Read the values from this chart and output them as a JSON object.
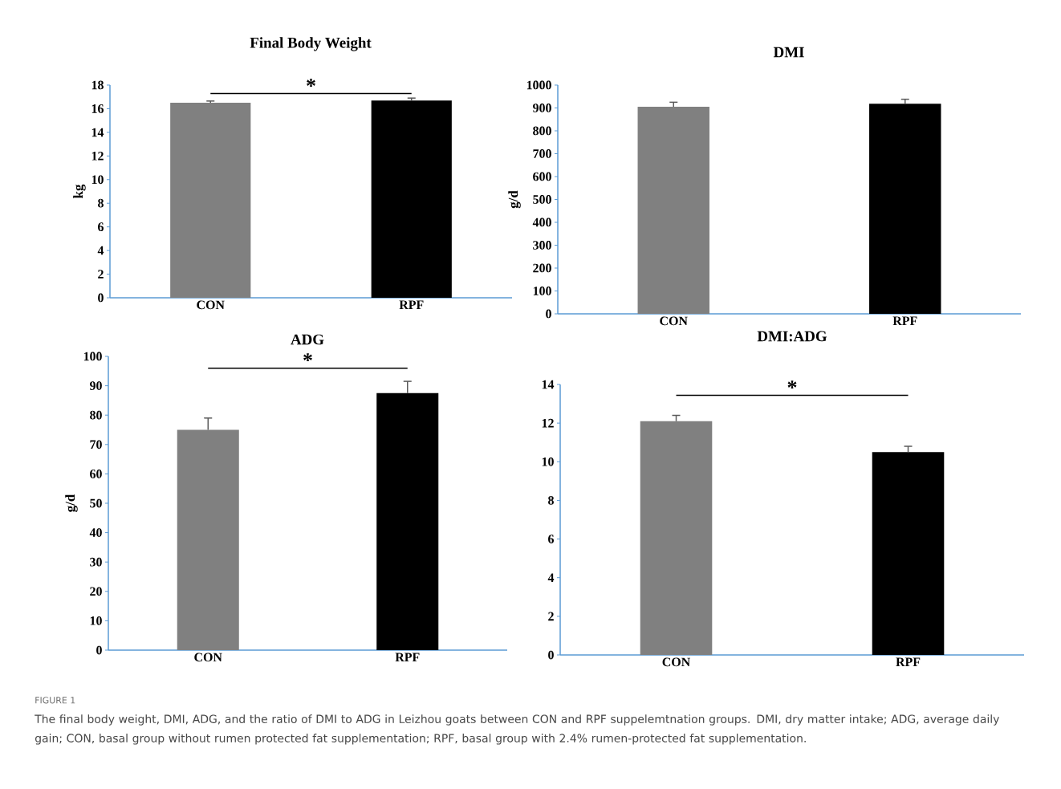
{
  "chart_data": [
    {
      "type": "bar",
      "title": "Final Body Weight",
      "ylabel": "kg",
      "categories": [
        "CON",
        "RPF"
      ],
      "values": [
        16.5,
        16.7
      ],
      "errors": [
        0.15,
        0.2
      ],
      "colors": [
        "#808080",
        "#000000"
      ],
      "ylim": [
        0,
        18
      ],
      "yticks": [
        0,
        2,
        4,
        6,
        8,
        10,
        12,
        14,
        16,
        18
      ],
      "annotations": [
        "*"
      ]
    },
    {
      "type": "bar",
      "title": "DMI",
      "ylabel": "g/d",
      "categories": [
        "CON",
        "RPF"
      ],
      "values": [
        905,
        918
      ],
      "errors": [
        20,
        20
      ],
      "colors": [
        "#808080",
        "#000000"
      ],
      "ylim": [
        0,
        1000
      ],
      "yticks": [
        0,
        100,
        200,
        300,
        400,
        500,
        600,
        700,
        800,
        900,
        1000
      ]
    },
    {
      "type": "bar",
      "title": "ADG",
      "ylabel": "g/d",
      "categories": [
        "CON",
        "RPF"
      ],
      "values": [
        75,
        87.5
      ],
      "errors": [
        4,
        4
      ],
      "colors": [
        "#808080",
        "#000000"
      ],
      "ylim": [
        0,
        100
      ],
      "yticks": [
        0,
        10,
        20,
        30,
        40,
        50,
        60,
        70,
        80,
        90,
        100
      ],
      "annotations": [
        "*"
      ]
    },
    {
      "type": "bar",
      "title": "DMI:ADG",
      "categories": [
        "CON",
        "RPF"
      ],
      "values": [
        12.1,
        10.5
      ],
      "errors": [
        0.3,
        0.3
      ],
      "colors": [
        "#808080",
        "#000000"
      ],
      "ylim": [
        0,
        14
      ],
      "yticks": [
        0,
        2,
        4,
        6,
        8,
        10,
        12,
        14
      ],
      "annotations": [
        "*",
        "FIGURE 1",
        "The final body weight, DMI, ADG, and the ratio of DMI to ADG in Leizhou goats between CON and RPF suppelemtnation groups. DMI, dry matter intake; ADG, average daily gain; CON, basal group without rumen protected fat supplementation; RPF, basal group with 2.4% rumen-protected fat supplementation."
      ]
    }
  ]
}
